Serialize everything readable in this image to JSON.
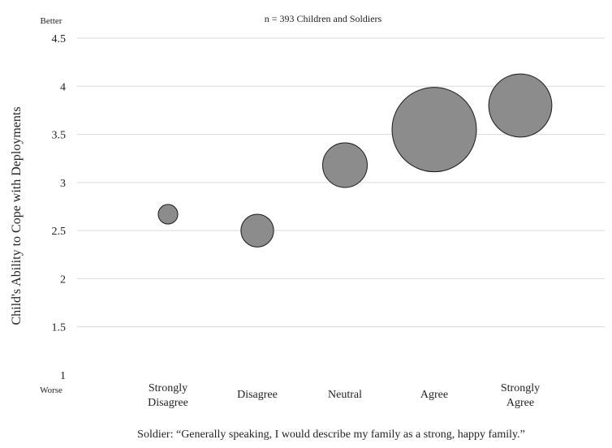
{
  "chart_data": {
    "type": "bubble",
    "title": "n = 393 Children and Soldiers",
    "ylabel": "Child's Ability to Cope with Deployments",
    "xlabel": "Soldier: “Generally speaking, I would describe my family as a strong, happy family.”",
    "ylim": [
      1,
      4.5
    ],
    "y_ticks": [
      "1",
      "1.5",
      "2",
      "2.5",
      "3",
      "3.5",
      "4",
      "4.5"
    ],
    "y_top_annotation": "Better",
    "y_bottom_annotation": "Worse",
    "grid": true,
    "categories": [
      [
        "Strongly",
        "Disagree"
      ],
      [
        "Disagree"
      ],
      [
        "Neutral"
      ],
      [
        "Agree"
      ],
      [
        "Strongly",
        "Agree"
      ]
    ],
    "values": [
      2.67,
      2.5,
      3.18,
      3.55,
      3.8
    ],
    "bubble_size": [
      5,
      14,
      26,
      93,
      52
    ],
    "colors": {
      "bubble_fill": "#8c8c8c",
      "bubble_stroke": "#1a1a1a",
      "grid": "#d9d9d9"
    }
  }
}
